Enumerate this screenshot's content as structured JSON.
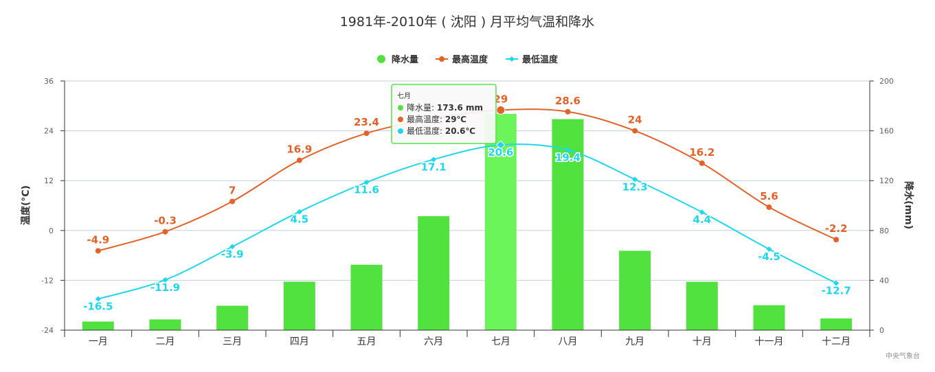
{
  "chart_data": {
    "type": "bar+line",
    "title": "1981年-2010年 ( 沈阳 ) 月平均气温和降水",
    "categories": [
      "一月",
      "二月",
      "三月",
      "四月",
      "五月",
      "六月",
      "七月",
      "八月",
      "九月",
      "十月",
      "十一月",
      "十二月"
    ],
    "y_left": {
      "label": "温度(°C)",
      "ticks": [
        "36",
        "24",
        "12",
        "0",
        "-12",
        "-24"
      ],
      "min": -24,
      "max": 36
    },
    "y_right": {
      "label": "降水(mm)",
      "ticks": [
        "200",
        "160",
        "120",
        "80",
        "40",
        "0"
      ],
      "min": 0,
      "max": 200
    },
    "legend": {
      "placement": "top-center"
    },
    "series": [
      {
        "name": "降水量",
        "type": "bar",
        "axis": "right",
        "color": "#52e240",
        "values": [
          6.9,
          8.6,
          19.6,
          38.9,
          52.5,
          91.5,
          173.6,
          169.4,
          63.7,
          38.8,
          20.0,
          9.4
        ]
      },
      {
        "name": "最高温度",
        "type": "line",
        "axis": "left",
        "color": "#e2622a",
        "values": [
          -4.9,
          -0.3,
          7,
          16.9,
          23.4,
          27,
          29,
          28.6,
          24,
          16.2,
          5.6,
          -2.2
        ],
        "labels": [
          "-4.9",
          "-0.3",
          "7",
          "16.9",
          "23.4",
          "",
          "29",
          "28.6",
          "24",
          "16.2",
          "5.6",
          "-2.2"
        ]
      },
      {
        "name": "最低温度",
        "type": "line",
        "axis": "left",
        "color": "#1ed7ec",
        "values": [
          -16.5,
          -11.9,
          -3.9,
          4.5,
          11.6,
          17.1,
          20.6,
          19.4,
          12.3,
          4.4,
          -4.5,
          -12.7
        ],
        "labels": [
          "-16.5",
          "-11.9",
          "-3.9",
          "4.5",
          "11.6",
          "17.1",
          "20.6",
          "19.4",
          "12.3",
          "4.4",
          "-4.5",
          "-12.7"
        ]
      }
    ],
    "tooltip": {
      "header": "七月",
      "rows": [
        {
          "name": "降水量",
          "value": "173.6 mm",
          "color": "#52e240"
        },
        {
          "name": "最高温度",
          "value": "29℃",
          "color": "#e2622a"
        },
        {
          "name": "最低温度",
          "value": "20.6℃",
          "color": "#1ed7ec"
        }
      ]
    },
    "credit": "中央气象台"
  }
}
